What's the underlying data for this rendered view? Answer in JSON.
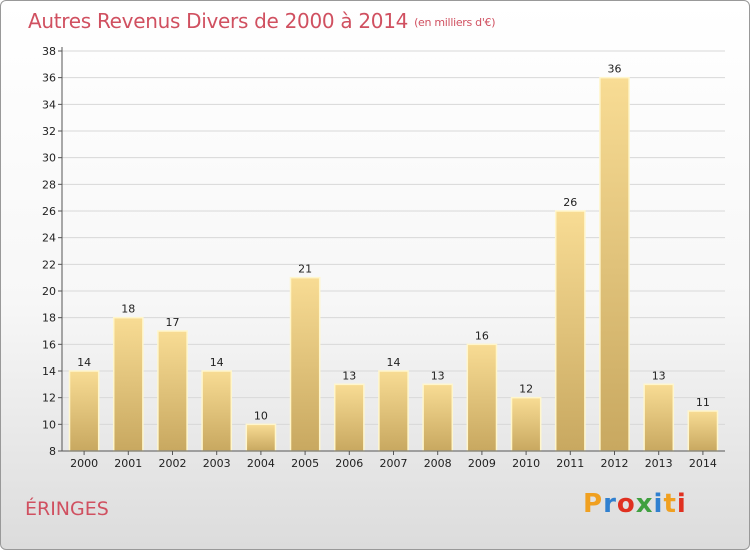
{
  "title": "Autres Revenus Divers de 2000 à 2014",
  "subtitle": "(en milliers d'€)",
  "location": "ÉRINGES",
  "logo": {
    "text": "Proxiti",
    "letters": [
      "P",
      "r",
      "o",
      "x",
      "i",
      "t",
      "i"
    ],
    "colors": [
      "#f0a020",
      "#3080d0",
      "#e03020",
      "#40a040",
      "#3080d0",
      "#f0a020",
      "#e03020"
    ]
  },
  "colors": {
    "title": "#d05060",
    "bar_top": "#f8dc94",
    "bar_bottom": "#c8a860",
    "bar_edge": "#fff6cc",
    "grid": "#d8d8d8",
    "axis": "#555555"
  },
  "chart_data": {
    "type": "bar",
    "title": "Autres Revenus Divers de 2000 à 2014",
    "subtitle": "(en milliers d'€)",
    "categories": [
      "2000",
      "2001",
      "2002",
      "2003",
      "2004",
      "2005",
      "2006",
      "2007",
      "2008",
      "2009",
      "2010",
      "2011",
      "2012",
      "2013",
      "2014"
    ],
    "values": [
      14,
      18,
      17,
      14,
      10,
      21,
      13,
      14,
      13,
      16,
      12,
      26,
      36,
      13,
      11
    ],
    "ylim": [
      8,
      38
    ],
    "yticks": [
      8,
      10,
      12,
      14,
      16,
      18,
      20,
      22,
      24,
      26,
      28,
      30,
      32,
      34,
      36,
      38
    ],
    "xlabel": "",
    "ylabel": "",
    "grid": true,
    "data_labels": true
  }
}
